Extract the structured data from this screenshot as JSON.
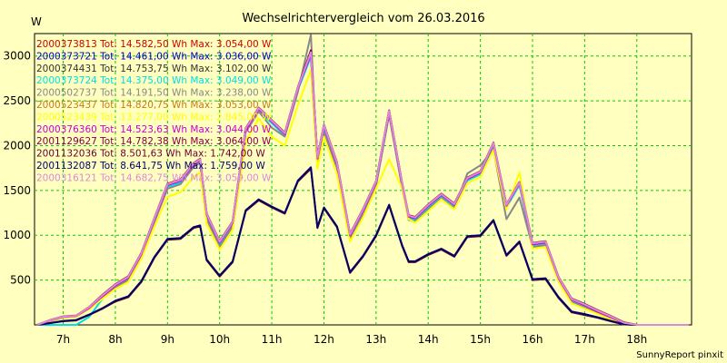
{
  "chart_data": {
    "type": "line",
    "title": "Wechselrichtervergleich vom 26.03.2016",
    "ylabel": "W",
    "xlabel": "",
    "credit": "SunnyReport pinxit",
    "ylim": [
      0,
      3250
    ],
    "xlim": [
      6.45,
      19.05
    ],
    "grid": true,
    "legend_position": "top-left",
    "background": "#ffffc0",
    "grid_color": "#00cc00",
    "yticks": [
      500,
      1000,
      1500,
      2000,
      2500,
      3000
    ],
    "xticks": [
      {
        "value": 7,
        "label": "7h"
      },
      {
        "value": 8,
        "label": "8h"
      },
      {
        "value": 9,
        "label": "9h"
      },
      {
        "value": 10,
        "label": "10h"
      },
      {
        "value": 11,
        "label": "11h"
      },
      {
        "value": 12,
        "label": "12h"
      },
      {
        "value": 13,
        "label": "13h"
      },
      {
        "value": 14,
        "label": "14h"
      },
      {
        "value": 15,
        "label": "15h"
      },
      {
        "value": 16,
        "label": "16h"
      },
      {
        "value": 17,
        "label": "17h"
      },
      {
        "value": 18,
        "label": "18h"
      }
    ],
    "x": [
      6.5,
      6.75,
      7.0,
      7.25,
      7.5,
      7.75,
      8.0,
      8.25,
      8.5,
      8.75,
      9.0,
      9.25,
      9.5,
      9.625,
      9.75,
      10.0,
      10.25,
      10.5,
      10.75,
      11.0,
      11.25,
      11.5,
      11.75,
      11.875,
      12.0,
      12.25,
      12.5,
      12.75,
      13.0,
      13.25,
      13.5,
      13.625,
      13.75,
      14.0,
      14.25,
      14.5,
      14.75,
      15.0,
      15.25,
      15.5,
      15.75,
      16.0,
      16.25,
      16.5,
      16.75,
      17.0,
      17.25,
      17.5,
      17.75,
      18.0,
      18.25,
      18.5,
      18.75,
      19.0
    ],
    "series": [
      {
        "name": "2000373813",
        "legend": "2000373813 Tot: 14.582,50 Wh Max: 3.054,00 W",
        "color": "#cc0000",
        "values": [
          0,
          50,
          90,
          100,
          190,
          320,
          440,
          530,
          790,
          1180,
          1560,
          1610,
          1790,
          1840,
          1230,
          920,
          1140,
          2180,
          2410,
          2270,
          2130,
          2640,
          3020,
          1860,
          2220,
          1800,
          1000,
          1280,
          1590,
          2380,
          1570,
          1210,
          1190,
          1330,
          1450,
          1340,
          1630,
          1700,
          2020,
          1330,
          1580,
          900,
          920,
          520,
          280,
          220,
          150,
          90,
          20,
          0,
          0,
          0,
          0,
          0
        ]
      },
      {
        "name": "2000373721",
        "legend": "2000373721 Tot: 14.461,00 Wh Max: 3.036,00 W",
        "color": "#0000cc",
        "values": [
          0,
          40,
          80,
          95,
          185,
          310,
          430,
          520,
          780,
          1170,
          1550,
          1600,
          1780,
          1830,
          1220,
          910,
          1130,
          2170,
          2400,
          2260,
          2120,
          2630,
          3000,
          1850,
          2210,
          1790,
          990,
          1270,
          1580,
          2370,
          1560,
          1200,
          1180,
          1320,
          1440,
          1330,
          1620,
          1690,
          2010,
          1320,
          1570,
          890,
          910,
          510,
          270,
          210,
          140,
          80,
          15,
          0,
          0,
          0,
          0,
          0
        ]
      },
      {
        "name": "2000374431",
        "legend": "2000374431 Tot: 14.753,75 Wh Max: 3.102,00 W",
        "color": "#333333",
        "values": [
          0,
          50,
          90,
          100,
          195,
          330,
          450,
          540,
          800,
          1190,
          1570,
          1620,
          1800,
          1850,
          1240,
          930,
          1150,
          2190,
          2420,
          2280,
          2140,
          2650,
          3060,
          1870,
          2230,
          1810,
          1010,
          1290,
          1600,
          2390,
          1580,
          1220,
          1200,
          1340,
          1460,
          1350,
          1640,
          1710,
          2030,
          1340,
          1590,
          910,
          930,
          530,
          290,
          230,
          160,
          95,
          25,
          0,
          0,
          0,
          0,
          0
        ]
      },
      {
        "name": "2000373724",
        "legend": "2000373724 Tot: 14.375,00 Wh Max: 3.049,00 W",
        "color": "#00e0e0",
        "values": [
          0,
          0,
          0,
          0,
          90,
          290,
          420,
          510,
          770,
          1160,
          1540,
          1590,
          1770,
          1820,
          1210,
          900,
          1120,
          2160,
          2390,
          2250,
          2110,
          2620,
          2990,
          1840,
          2200,
          1780,
          980,
          1260,
          1570,
          2360,
          1550,
          1190,
          1170,
          1310,
          1430,
          1320,
          1610,
          1680,
          2000,
          1310,
          1560,
          880,
          900,
          500,
          260,
          200,
          130,
          75,
          10,
          0,
          0,
          0,
          0,
          0
        ]
      },
      {
        "name": "2000502737",
        "legend": "2000502737 Tot: 14.191,50 Wh Max: 3.238,00 W",
        "color": "#888888",
        "values": [
          0,
          45,
          85,
          95,
          180,
          300,
          420,
          500,
          760,
          1150,
          1520,
          1570,
          1760,
          1810,
          1180,
          870,
          1100,
          2150,
          2380,
          2200,
          2100,
          2600,
          3238,
          1760,
          2150,
          1750,
          960,
          1240,
          1550,
          2340,
          1530,
          1170,
          1150,
          1290,
          1410,
          1300,
          1690,
          1780,
          1960,
          1180,
          1420,
          870,
          890,
          490,
          250,
          190,
          130,
          70,
          10,
          0,
          0,
          0,
          0,
          0
        ]
      },
      {
        "name": "2000523437",
        "legend": "2000523437 Tot: 14.820,75 Wh Max: 3.053,00 W",
        "color": "#cc7722",
        "values": [
          0,
          55,
          95,
          105,
          200,
          335,
          455,
          545,
          805,
          1195,
          1575,
          1625,
          1805,
          1855,
          1245,
          935,
          1155,
          2195,
          2425,
          2285,
          2145,
          2655,
          3030,
          1875,
          2235,
          1815,
          1015,
          1295,
          1605,
          2395,
          1585,
          1225,
          1205,
          1345,
          1465,
          1355,
          1645,
          1715,
          2035,
          1345,
          1595,
          915,
          935,
          535,
          295,
          235,
          165,
          100,
          30,
          0,
          0,
          0,
          0,
          0
        ]
      },
      {
        "name": "2000523439",
        "legend": "2000523439 Tot: 13.277,00 Wh Max: 2.845,00 W",
        "color": "#ffff00",
        "values": [
          0,
          40,
          80,
          90,
          175,
          290,
          400,
          480,
          740,
          1100,
          1430,
          1480,
          1650,
          1700,
          1130,
          840,
          1060,
          2050,
          2300,
          2100,
          2000,
          2450,
          2845,
          1740,
          2100,
          1680,
          930,
          1200,
          1520,
          1850,
          1520,
          1180,
          1140,
          1270,
          1400,
          1290,
          1580,
          1650,
          1950,
          1290,
          1700,
          850,
          870,
          480,
          240,
          180,
          120,
          60,
          5,
          0,
          0,
          0,
          0,
          0
        ]
      },
      {
        "name": "2000376360",
        "legend": "2000376360 Tot: 14.523,63 Wh Max: 3.044,00 W",
        "color": "#cc00cc",
        "values": [
          0,
          48,
          88,
          98,
          188,
          318,
          438,
          528,
          788,
          1178,
          1558,
          1608,
          1788,
          1838,
          1228,
          918,
          1138,
          2178,
          2408,
          2268,
          2128,
          2638,
          3018,
          1858,
          2218,
          1798,
          998,
          1278,
          1588,
          2378,
          1568,
          1208,
          1188,
          1328,
          1448,
          1338,
          1628,
          1698,
          2018,
          1328,
          1578,
          898,
          918,
          518,
          278,
          218,
          148,
          88,
          18,
          0,
          0,
          0,
          0,
          0
        ]
      },
      {
        "name": "2001129627",
        "legend": "2001129627 Tot: 14.782,38 Wh Max: 3.064,00 W",
        "color": "#880044",
        "values": [
          0,
          52,
          92,
          102,
          198,
          332,
          452,
          542,
          802,
          1192,
          1572,
          1622,
          1802,
          1852,
          1242,
          932,
          1152,
          2192,
          2422,
          2282,
          2142,
          2652,
          3064,
          1872,
          2232,
          1812,
          1012,
          1292,
          1602,
          2392,
          1582,
          1222,
          1202,
          1342,
          1462,
          1352,
          1642,
          1712,
          2032,
          1342,
          1592,
          912,
          932,
          532,
          292,
          232,
          162,
          98,
          28,
          0,
          0,
          0,
          0,
          0
        ]
      },
      {
        "name": "2001132036",
        "legend": "2001132036 Tot: 8.501,63 Wh Max: 1.742,00 W",
        "color": "#660033",
        "values": [
          0,
          20,
          40,
          50,
          110,
          180,
          260,
          310,
          480,
          750,
          950,
          960,
          1080,
          1100,
          720,
          540,
          700,
          1270,
          1390,
          1310,
          1240,
          1600,
          1742,
          1080,
          1300,
          1090,
          580,
          760,
          990,
          1330,
          880,
          700,
          700,
          780,
          840,
          760,
          980,
          990,
          1160,
          770,
          920,
          500,
          510,
          300,
          140,
          110,
          80,
          40,
          5,
          0,
          0,
          0,
          0,
          0
        ]
      },
      {
        "name": "2001132087",
        "legend": "2001132087 Tot: 8.641,75 Wh Max: 1.759,00 W",
        "color": "#000066",
        "values": [
          0,
          20,
          45,
          55,
          115,
          185,
          270,
          320,
          490,
          760,
          960,
          970,
          1090,
          1110,
          730,
          550,
          710,
          1280,
          1400,
          1320,
          1250,
          1610,
          1759,
          1090,
          1310,
          1100,
          590,
          770,
          1000,
          1340,
          890,
          710,
          710,
          790,
          850,
          770,
          990,
          1000,
          1170,
          780,
          930,
          510,
          520,
          310,
          150,
          120,
          85,
          45,
          8,
          0,
          0,
          0,
          0,
          0
        ]
      },
      {
        "name": "2000316121",
        "legend": "2000316121 Tot: 14.682,75 Wh Max: 3.059,00 W",
        "color": "#dd88dd",
        "values": [
          0,
          51,
          91,
          101,
          196,
          328,
          448,
          538,
          798,
          1188,
          1568,
          1618,
          1798,
          1848,
          1238,
          928,
          1148,
          2188,
          2418,
          2278,
          2138,
          2648,
          3040,
          1868,
          2228,
          1808,
          1008,
          1288,
          1598,
          2388,
          1578,
          1218,
          1198,
          1338,
          1458,
          1348,
          1638,
          1708,
          2028,
          1338,
          1588,
          908,
          928,
          528,
          288,
          228,
          158,
          94,
          24,
          0,
          0,
          0,
          0,
          0
        ]
      }
    ]
  }
}
